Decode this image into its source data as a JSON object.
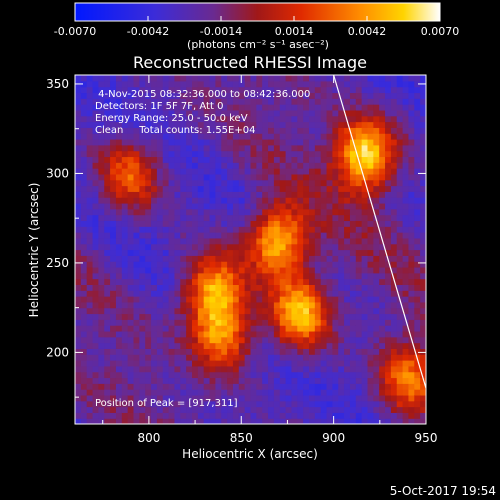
{
  "colorbar": {
    "ticks": [
      "-0.0070",
      "-0.0042",
      "-0.0014",
      "0.0014",
      "0.0042",
      "0.0070"
    ],
    "tick_values": [
      -0.007,
      -0.0042,
      -0.0014,
      0.0014,
      0.0042,
      0.007
    ],
    "units": "(photons cm⁻² s⁻¹ asec⁻²)",
    "colormap": "rhessi (blue-purple-red-orange-yellow-white)"
  },
  "chart_data": {
    "type": "heatmap",
    "title": "Reconstructed RHESSI Image",
    "xlabel": "Heliocentric X (arcsec)",
    "ylabel": "Heliocentric Y (arcsec)",
    "xlim": [
      760,
      950
    ],
    "ylim": [
      160,
      355
    ],
    "xticks": [
      800,
      850,
      900,
      950
    ],
    "yticks": [
      200,
      250,
      300,
      350
    ],
    "value_range": [
      -0.007,
      0.007
    ],
    "bright_sources": [
      {
        "x": 835,
        "y": 235,
        "relative_intensity": 0.85
      },
      {
        "x": 840,
        "y": 210,
        "relative_intensity": 0.75
      },
      {
        "x": 870,
        "y": 262,
        "relative_intensity": 0.95
      },
      {
        "x": 882,
        "y": 222,
        "relative_intensity": 0.9
      },
      {
        "x": 917,
        "y": 311,
        "relative_intensity": 1.0
      },
      {
        "x": 940,
        "y": 185,
        "relative_intensity": 0.65
      },
      {
        "x": 790,
        "y": 300,
        "relative_intensity": 0.6
      }
    ],
    "limb_line": [
      [
        900,
        355
      ],
      [
        950,
        180
      ]
    ],
    "peak_marker": {
      "x": 917,
      "y": 311
    }
  },
  "info": {
    "line1": " 4-Nov-2015 08:32:36.000 to 08:42:36.000",
    "line2": "Detectors: 1F 5F 7F, Att 0",
    "line3": "Energy Range: 25.0 - 50.0 keV",
    "line4": "Clean     Total counts: 1.55E+04",
    "peak": "Position of Peak = [917,311]"
  },
  "timestamp": "5-Oct-2017 19:54"
}
